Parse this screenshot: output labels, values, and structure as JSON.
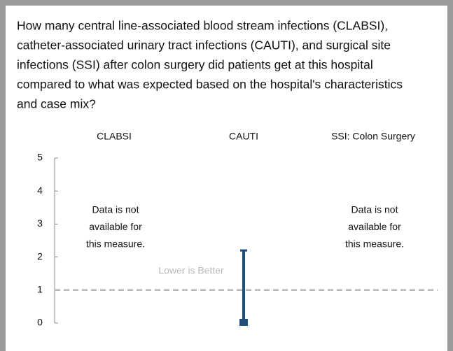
{
  "chart_data": {
    "type": "errorbar",
    "title_lines": [
      "How many central line-associated blood stream infections (CLABSI),",
      "catheter-associated urinary tract infections (CAUTI), and surgical site",
      "infections (SSI) after colon surgery did patients get at this hospital",
      "compared to what was expected based on the hospital's characteristics",
      "and case mix?"
    ],
    "categories": [
      "CLABSI",
      "CAUTI",
      "SSI: Colon Surgery"
    ],
    "series": [
      {
        "color": "#1f4e79",
        "values": [
          null,
          0,
          null
        ],
        "upper": [
          null,
          2.2,
          null
        ]
      }
    ],
    "notes": [
      [
        "Data is not",
        "available for",
        "this measure."
      ],
      null,
      [
        "Data is not",
        "available for",
        "this measure."
      ]
    ],
    "reference": {
      "value": 1,
      "label": "Lower is Better",
      "color": "#bbbbbb"
    },
    "ylim": [
      0,
      5
    ],
    "yticks": [
      0,
      1,
      2,
      3,
      4,
      5
    ]
  }
}
